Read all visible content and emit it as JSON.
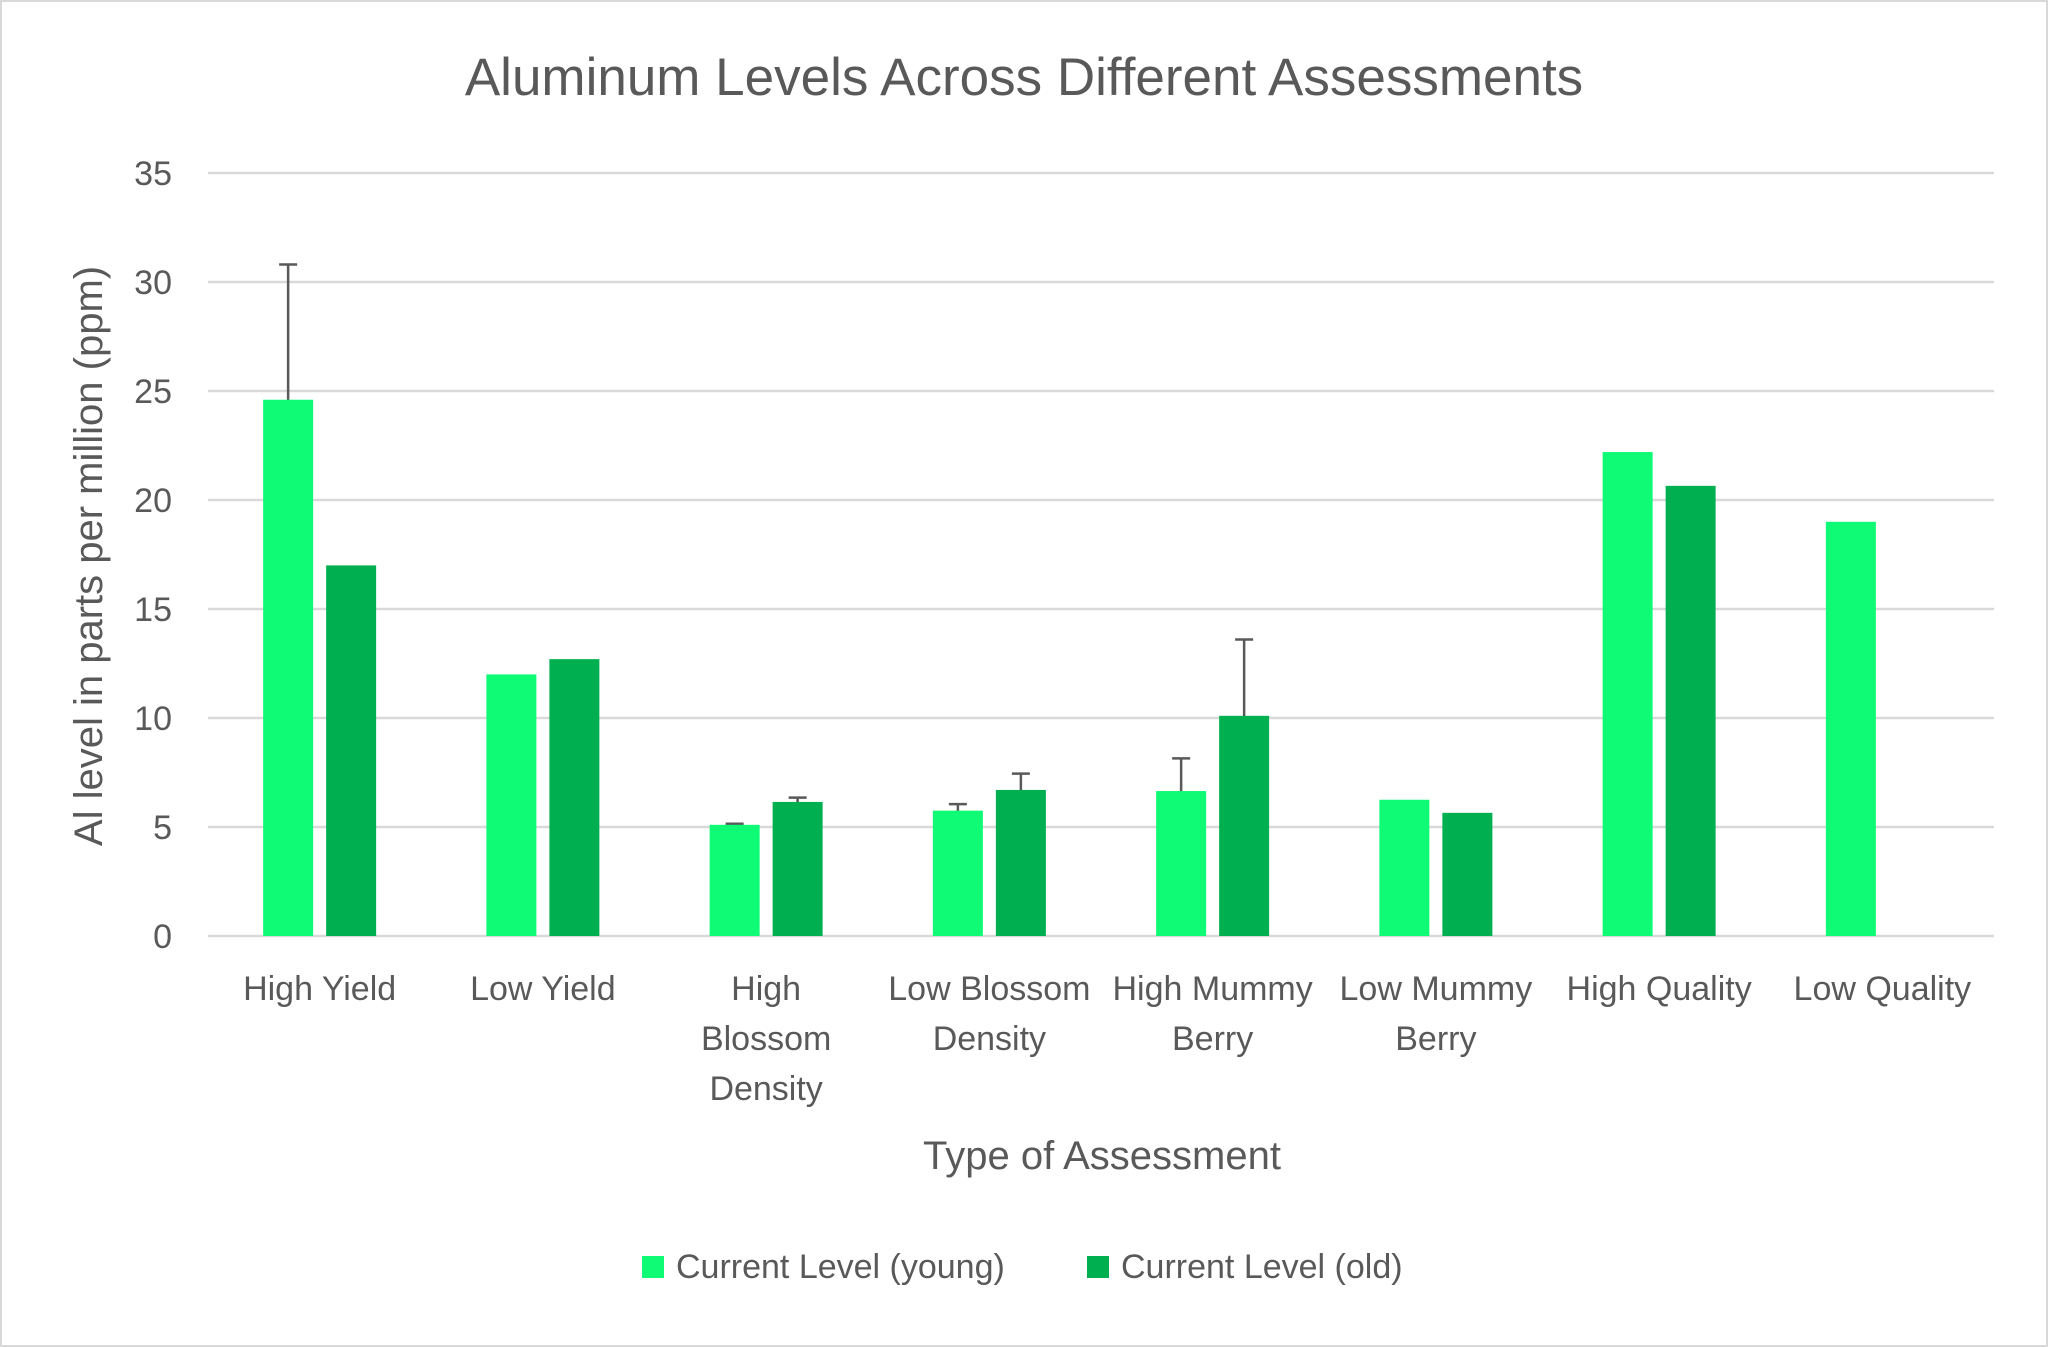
{
  "chart_data": {
    "type": "bar",
    "title": "Aluminum Levels Across Different Assessments",
    "xlabel": "Type of Assessment",
    "ylabel": "Al level in parts per million (ppm)",
    "ylim": [
      0,
      35
    ],
    "yticks": [
      0,
      5,
      10,
      15,
      20,
      25,
      30,
      35
    ],
    "grid": true,
    "legend_position": "bottom",
    "categories": [
      [
        "High Yield"
      ],
      [
        "Low Yield"
      ],
      [
        "High",
        "Blossom",
        "Density"
      ],
      [
        "Low Blossom",
        "Density"
      ],
      [
        "High Mummy",
        "Berry"
      ],
      [
        "Low Mummy",
        "Berry"
      ],
      [
        "High Quality"
      ],
      [
        "Low Quality"
      ]
    ],
    "series": [
      {
        "name": "Current Level (young)",
        "color": "#0ffb76",
        "values": [
          24.6,
          12.0,
          5.1,
          5.75,
          6.65,
          6.25,
          22.2,
          19.0
        ],
        "error": [
          6.2,
          null,
          0.05,
          0.3,
          1.5,
          null,
          null,
          null
        ]
      },
      {
        "name": "Current Level (old)",
        "color": "#00b050",
        "values": [
          17.0,
          12.7,
          6.15,
          6.7,
          10.1,
          5.65,
          20.65,
          null
        ],
        "error": [
          null,
          null,
          0.2,
          0.75,
          3.5,
          null,
          null,
          null
        ]
      }
    ]
  }
}
